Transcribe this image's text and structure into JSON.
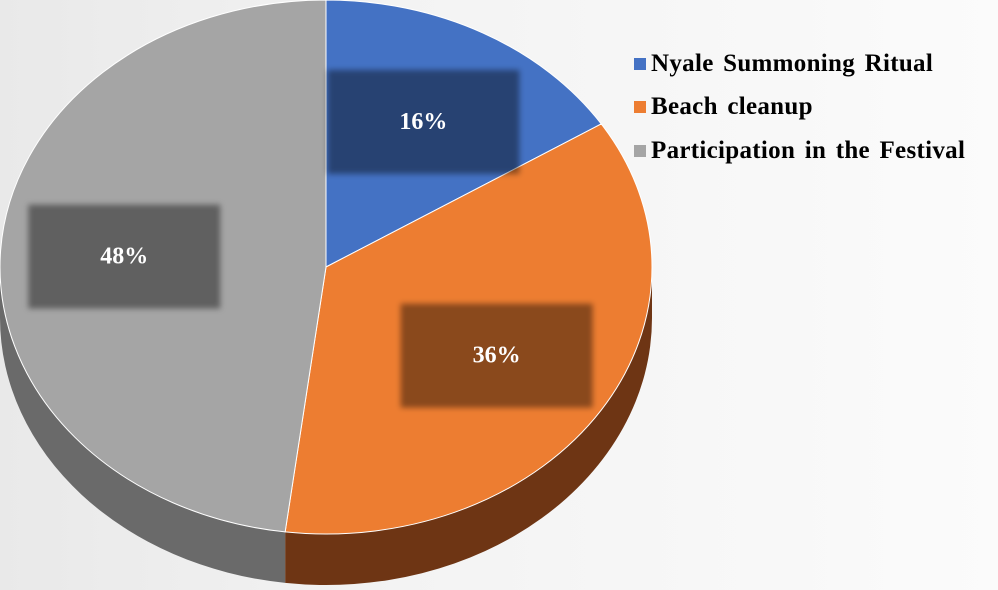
{
  "chart_data": {
    "type": "pie",
    "style": "3d",
    "categories": [
      "Nyale Summoning Ritual",
      "Beach cleanup",
      "Participation in the Festival"
    ],
    "values": [
      16,
      36,
      48
    ],
    "labels": [
      "16%",
      "36%",
      "48%"
    ],
    "colors": [
      "#4472c4",
      "#ed7d31",
      "#a5a5a5"
    ],
    "side_colors": [
      "#2a4680",
      "#6e3514",
      "#6a6a6a"
    ],
    "legend_position": "top-right"
  }
}
